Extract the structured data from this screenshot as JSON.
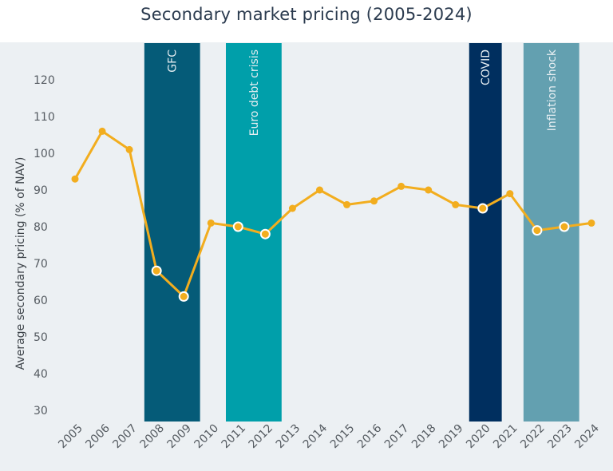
{
  "chart_data": {
    "type": "line",
    "title": "Secondary market pricing (2005-2024)",
    "xlabel": "",
    "ylabel": "Average secondary pricing (% of NAV)",
    "ylim": [
      27,
      129
    ],
    "yticks": [
      30,
      40,
      50,
      60,
      70,
      80,
      90,
      100,
      110,
      120
    ],
    "x": [
      "2005",
      "2006",
      "2007",
      "2008",
      "2009",
      "2010",
      "2011",
      "2012",
      "2013",
      "2014",
      "2015",
      "2016",
      "2017",
      "2018",
      "2019",
      "2020",
      "2021",
      "2022",
      "2023",
      "2024"
    ],
    "series": [
      {
        "name": "Average secondary pricing",
        "color": "#f2ad1e",
        "values": [
          93,
          106,
          101,
          68,
          61,
          81,
          80,
          78,
          85,
          90,
          86,
          87,
          91,
          90,
          86,
          85,
          89,
          79,
          80,
          81
        ]
      }
    ],
    "bands": [
      {
        "label": "GFC",
        "start": 2007.55,
        "end": 2009.6,
        "color": "#055b78"
      },
      {
        "label": "Euro debt crisis",
        "start": 2010.55,
        "end": 2012.6,
        "color": "#009faa"
      },
      {
        "label": "COVID",
        "start": 2019.5,
        "end": 2020.7,
        "color": "#002f5f"
      },
      {
        "label": "Inflation shock",
        "start": 2021.5,
        "end": 2023.55,
        "color": "#63a0b0"
      }
    ],
    "grid": false,
    "legend": "none",
    "background": "#ecf0f3"
  }
}
